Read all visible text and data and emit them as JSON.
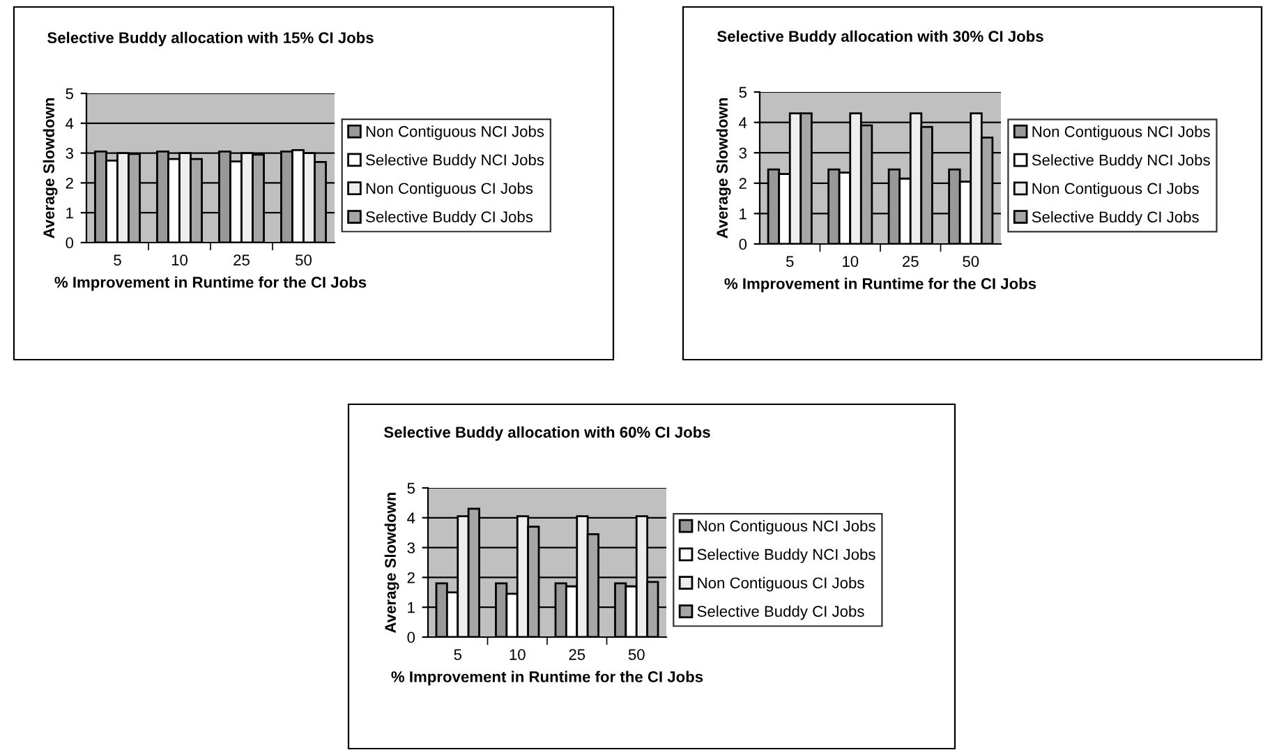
{
  "chart_data": [
    {
      "type": "bar",
      "title": "Selective Buddy allocation with 15% CI Jobs",
      "xlabel": "% Improvement in Runtime for the CI Jobs",
      "ylabel": "Average Slowdown",
      "categories": [
        "5",
        "10",
        "25",
        "50"
      ],
      "ylim": [
        0,
        5
      ],
      "yticks": [
        0,
        1,
        2,
        3,
        4,
        5
      ],
      "grid": "y",
      "legend": "right",
      "series": [
        {
          "name": "Non Contiguous NCI Jobs",
          "color": "#999999",
          "values": [
            3.05,
            3.05,
            3.05,
            3.05
          ]
        },
        {
          "name": "Selective Buddy NCI Jobs",
          "color": "#ffffff",
          "values": [
            2.75,
            2.8,
            2.72,
            3.1
          ]
        },
        {
          "name": "Non Contiguous CI Jobs",
          "color": "#eeeeee",
          "values": [
            3.0,
            3.0,
            3.0,
            3.0
          ]
        },
        {
          "name": "Selective Buddy CI Jobs",
          "color": "#a6a6a6",
          "values": [
            2.97,
            2.8,
            2.95,
            2.7
          ]
        }
      ]
    },
    {
      "type": "bar",
      "title": "Selective Buddy allocation with 30% CI Jobs",
      "xlabel": "% Improvement in Runtime for the CI Jobs",
      "ylabel": "Average Slowdown",
      "categories": [
        "5",
        "10",
        "25",
        "50"
      ],
      "ylim": [
        0,
        5
      ],
      "yticks": [
        0,
        1,
        2,
        3,
        4,
        5
      ],
      "grid": "y",
      "legend": "right",
      "series": [
        {
          "name": "Non Contiguous NCI Jobs",
          "color": "#999999",
          "values": [
            2.45,
            2.45,
            2.45,
            2.45
          ]
        },
        {
          "name": "Selective Buddy NCI Jobs",
          "color": "#ffffff",
          "values": [
            2.3,
            2.35,
            2.15,
            2.05
          ]
        },
        {
          "name": "Non Contiguous CI Jobs",
          "color": "#eeeeee",
          "values": [
            4.3,
            4.3,
            4.3,
            4.3
          ]
        },
        {
          "name": "Selective Buddy CI Jobs",
          "color": "#a6a6a6",
          "values": [
            4.3,
            3.9,
            3.85,
            3.5
          ]
        }
      ]
    },
    {
      "type": "bar",
      "title": "Selective Buddy allocation with 60% CI Jobs",
      "xlabel": "% Improvement in Runtime for the CI Jobs",
      "ylabel": "Average Slowdown",
      "categories": [
        "5",
        "10",
        "25",
        "50"
      ],
      "ylim": [
        0,
        5
      ],
      "yticks": [
        0,
        1,
        2,
        3,
        4,
        5
      ],
      "grid": "y",
      "legend": "right",
      "series": [
        {
          "name": "Non Contiguous NCI Jobs",
          "color": "#999999",
          "values": [
            1.8,
            1.8,
            1.8,
            1.8
          ]
        },
        {
          "name": "Selective Buddy NCI Jobs",
          "color": "#ffffff",
          "values": [
            1.5,
            1.45,
            1.7,
            1.7
          ]
        },
        {
          "name": "Non Contiguous CI Jobs",
          "color": "#eeeeee",
          "values": [
            4.05,
            4.05,
            4.05,
            4.05
          ]
        },
        {
          "name": "Selective Buddy CI Jobs",
          "color": "#a6a6a6",
          "values": [
            4.3,
            3.7,
            3.45,
            1.85
          ]
        }
      ]
    }
  ]
}
